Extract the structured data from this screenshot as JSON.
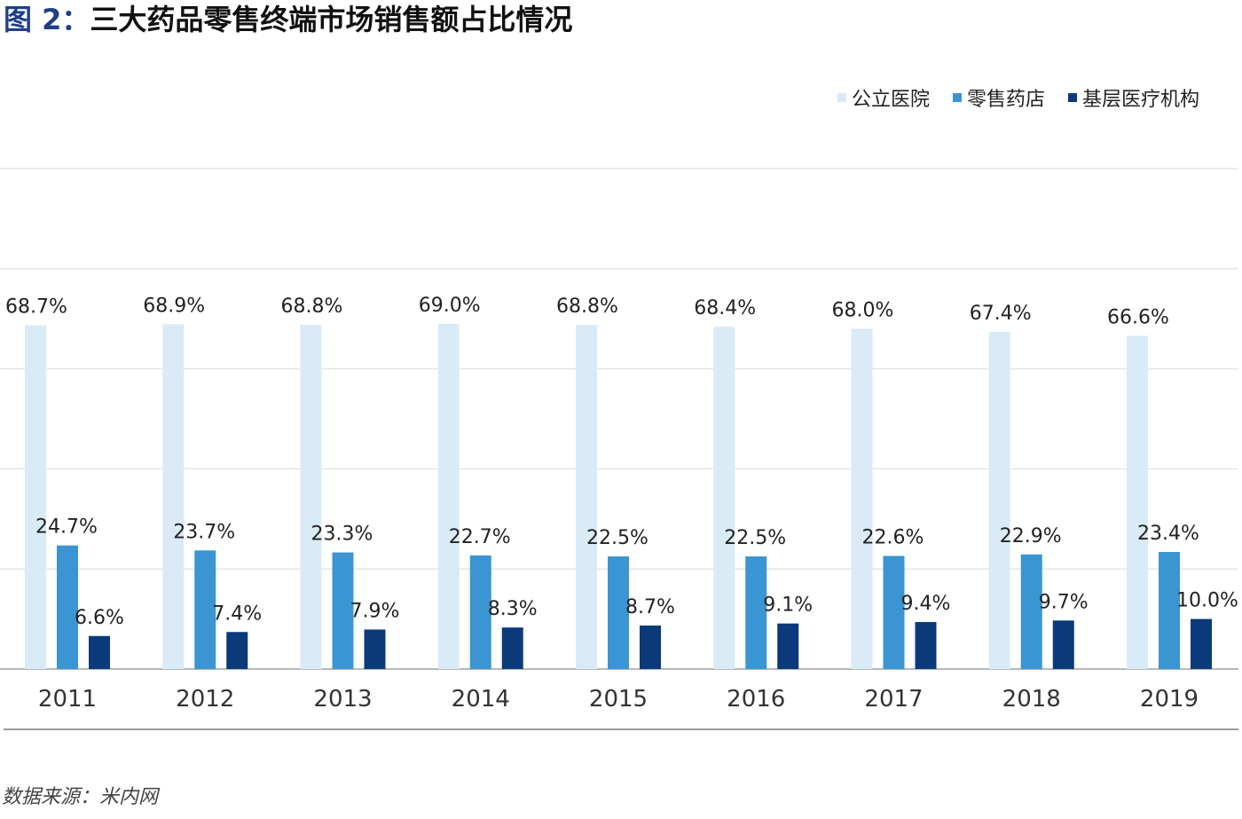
{
  "title": {
    "figure_no": "图 2：",
    "text": "三大药品零售终端市场销售额占比情况"
  },
  "source": "数据来源：米内网",
  "colors": {
    "public_hospital": "#d9ebf7",
    "retail_pharmacy": "#3a95d2",
    "primary_care": "#0b3a7a",
    "grid": "#e6e6e6",
    "axis": "#b8b8b8"
  },
  "chart_data": {
    "type": "bar",
    "categories": [
      "2011",
      "2012",
      "2013",
      "2014",
      "2015",
      "2016",
      "2017",
      "2018",
      "2019"
    ],
    "series": [
      {
        "name": "公立医院",
        "values": [
          68.7,
          68.9,
          68.8,
          69.0,
          68.8,
          68.4,
          68.0,
          67.4,
          66.6
        ],
        "labels": [
          "68.7%",
          "68.9%",
          "68.8%",
          "69.0%",
          "68.8%",
          "68.4%",
          "68.0%",
          "67.4%",
          "66.6%"
        ]
      },
      {
        "name": "零售药店",
        "values": [
          24.7,
          23.7,
          23.3,
          22.7,
          22.5,
          22.5,
          22.6,
          22.9,
          23.4
        ],
        "labels": [
          "24.7%",
          "23.7%",
          "23.3%",
          "22.7%",
          "22.5%",
          "22.5%",
          "22.6%",
          "22.9%",
          "23.4%"
        ]
      },
      {
        "name": "基层医疗机构",
        "values": [
          6.6,
          7.4,
          7.9,
          8.3,
          8.7,
          9.1,
          9.4,
          9.7,
          10.0
        ],
        "labels": [
          "6.6%",
          "7.4%",
          "7.9%",
          "8.3%",
          "8.7%",
          "9.1%",
          "9.4%",
          "9.7%",
          "10.0%"
        ]
      }
    ],
    "ylim": [
      0,
      100
    ],
    "grid": true,
    "legend": "top-right"
  }
}
